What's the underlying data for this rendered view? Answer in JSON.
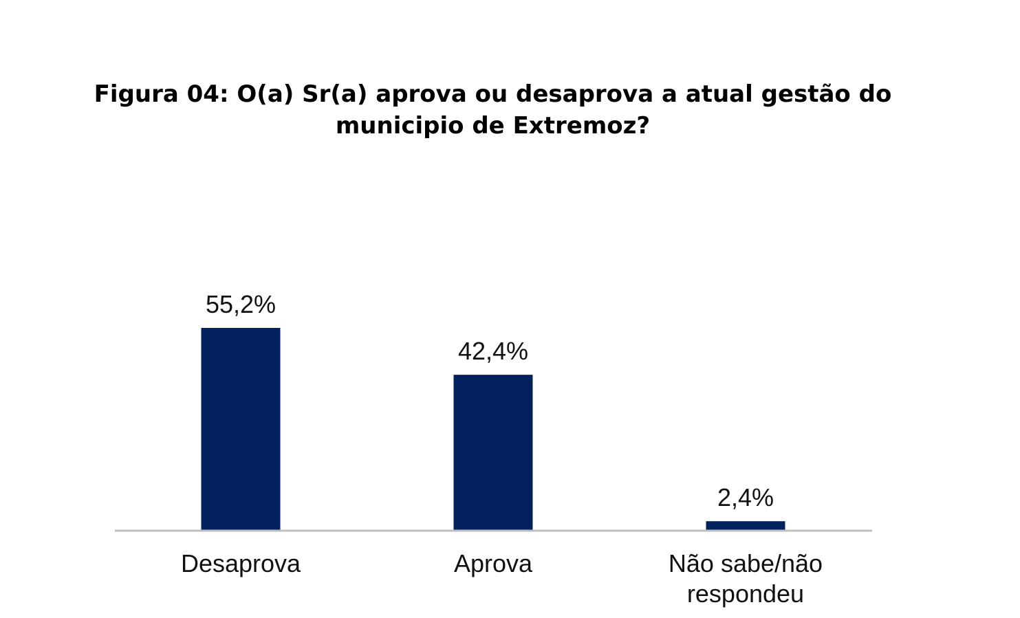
{
  "chart_data": {
    "type": "bar",
    "title_lines": [
      "Figura 04: O(a) Sr(a) aprova ou desaprova a atual gestão do",
      "municipio de Extremoz?"
    ],
    "categories": [
      [
        "Desaprova"
      ],
      [
        "Aprova"
      ],
      [
        "Não sabe/não",
        "respondeu"
      ]
    ],
    "values": [
      55.2,
      42.4,
      2.4
    ],
    "value_labels": [
      "55,2%",
      "42,4%",
      "2,4%"
    ],
    "xlabel": "",
    "ylabel": "",
    "ylim": [
      0,
      55.2
    ],
    "grid": false,
    "legend": "none",
    "bar_color": "#03215c",
    "baseline_color": "#bfbfbf"
  }
}
